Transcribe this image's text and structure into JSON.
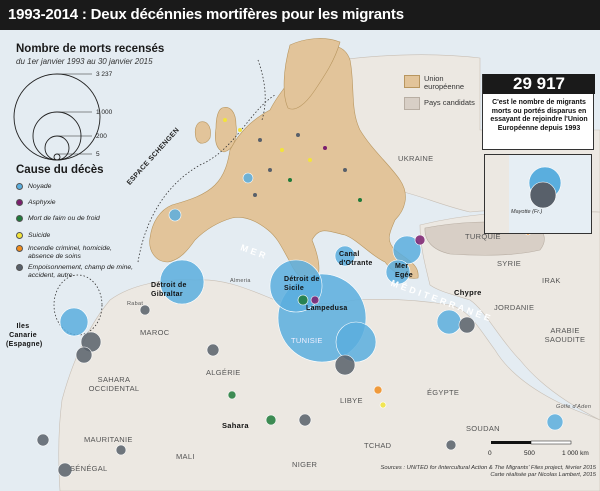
{
  "title": "1993-2014 : Deux décénnies mortifères pour les migrants",
  "size_legend": {
    "title": "Nombre de morts recensés",
    "subtitle": "du 1er janvier 1993 au 30 janvier 2015",
    "values": [
      "3 237",
      "1 000",
      "200",
      "5"
    ]
  },
  "cause_legend": {
    "title": "Cause du décès",
    "items": [
      {
        "label": "Noyade",
        "color": "#5aaede"
      },
      {
        "label": "Asphyxie",
        "color": "#7b1f6e"
      },
      {
        "label": "Mort de faim ou de froid",
        "color": "#1f7a3a"
      },
      {
        "label": "Suicide",
        "color": "#f2e43a"
      },
      {
        "label": "Incendie criminel, homicide, absence de soins",
        "color": "#f08c1e"
      },
      {
        "label": "Empoisonnement, champ de mine, accident, autre",
        "color": "#58606a"
      }
    ]
  },
  "stat": {
    "number": "29 917",
    "text": "C'est le nombre de migrants morts ou  portés disparus en essayant de rejoindre l'Union Européenne depuis 1993"
  },
  "area_legend": {
    "eu": "Union européenne",
    "candidates": "Pays candidats",
    "eu_color": "#e2c49a",
    "candidates_color": "#d8cfc6"
  },
  "inset": {
    "label": "Mayotte (Fr.)"
  },
  "labels": {
    "ukraine": "UKRAINE",
    "turquie": "TURQUIE",
    "syrie": "SYRIE",
    "irak": "IRAK",
    "jordanie": "JORDANIE",
    "arabie": "ARABIE SAOUDITE",
    "chypre": "Chypre",
    "egypte": "ÉGYPTE",
    "libye": "LIBYE",
    "tunisie": "TUNISIE",
    "algerie": "ALGÉRIE",
    "maroc": "MAROC",
    "sahara_occ": "SAHARA OCCIDENTAL",
    "mauritanie": "MAURITANIE",
    "mali": "MALI",
    "niger": "NIGER",
    "tchad": "TCHAD",
    "soudan": "SOUDAN",
    "senegal": "SÉNÉGAL",
    "sahara": "Sahara",
    "canaries": "Iles Canarie (Espagne)",
    "gibraltar": "Détroit de Gibraltar",
    "sicile": "Détroit de Sicile",
    "lampedusa": "Lampedusa",
    "otrante": "Canal d'Otrante",
    "egee": "Mer Egée",
    "schengen": "ESPACE SCHENGEN",
    "mer": "MER",
    "mediterranee": "MÉDITERRANÉE",
    "golfe_aden": "Golfe d'Aden",
    "rabat": "Rabat",
    "almeria": "Almeria"
  },
  "scale": {
    "zero": "0",
    "mid": "500",
    "max": "1 000 km"
  },
  "source": {
    "line1": "Sources : UNITED for iIntercultural Action & The Migrants' Files project, février 2015",
    "line2": "Carte réalisée par Nicolas Lambert, 2015"
  }
}
